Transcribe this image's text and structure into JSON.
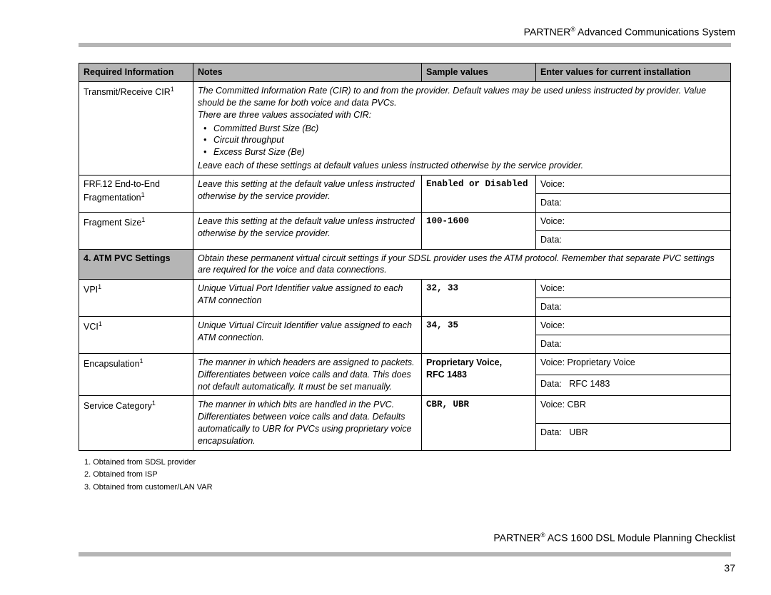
{
  "header": {
    "brand_prefix": "PARTNER",
    "brand_suffix": " Advanced Communications System"
  },
  "table": {
    "headers": {
      "c1": "Required Information",
      "c2": "Notes",
      "c3": "Sample values",
      "c4": "Enter values for current installation"
    },
    "rows": {
      "r1": {
        "name": "Transmit/Receive CIR",
        "notes_p1": "The Committed Information Rate (CIR) to and from the provider. Default values may be used unless instructed by provider. Value should be the same for both voice and data PVCs.",
        "notes_p2": "There are three values associated with CIR:",
        "b1": "Committed Burst Size (Bc)",
        "b2": "Circuit throughput",
        "b3": "Excess Burst Size (Be)",
        "notes_p3": "Leave each of these settings at default values unless instructed otherwise by the service provider."
      },
      "r2": {
        "name_l1": "FRF.12 End-to-End",
        "name_l2": "Fragmentation",
        "notes": "Leave this setting at the default value unless instructed otherwise by the service provider.",
        "sample": "Enabled or Disabled",
        "e1": "Voice:",
        "e2": "Data:"
      },
      "r3": {
        "name": "Fragment Size",
        "notes": "Leave this setting at the default value unless instructed otherwise by the service provider.",
        "sample": "100-1600",
        "e1": "Voice:",
        "e2": "Data:"
      },
      "section": {
        "label": "4. ATM PVC Settings",
        "desc": "Obtain these permanent virtual circuit settings if your SDSL provider uses the ATM protocol. Remember that separate PVC settings are required for the voice and data connections."
      },
      "r4": {
        "name": "VPI",
        "notes": "Unique Virtual Port Identifier value assigned to each ATM connection",
        "sample": "32, 33",
        "e1": "Voice:",
        "e2": "Data:"
      },
      "r5": {
        "name": "VCI",
        "notes": "Unique Virtual Circuit Identifier value assigned to each ATM connection.",
        "sample": "34, 35",
        "e1": "Voice:",
        "e2": "Data:"
      },
      "r6": {
        "name": "Encapsulation",
        "notes": "The manner in which headers are assigned to packets. Differentiates between voice calls and data. This does not default automatically. It must be set manually.",
        "sample_l1": "Proprietary Voice,",
        "sample_l2": "RFC 1483",
        "e1": "Voice: Proprietary Voice",
        "e2": "Data:   RFC 1483"
      },
      "r7": {
        "name": "Service Category",
        "notes": "The manner in which bits are handled in the PVC. Differentiates between voice calls and data. Defaults automatically to UBR for PVCs using proprietary voice encapsulation.",
        "sample": "CBR, UBR",
        "e1": "Voice: CBR",
        "e2": "Data:   UBR"
      }
    }
  },
  "footnotes": {
    "f1": "1. Obtained from SDSL provider",
    "f2": "2. Obtained from ISP",
    "f3": "3. Obtained from customer/LAN VAR"
  },
  "footer": {
    "brand_prefix": "PARTNER",
    "brand_suffix": " ACS 1600 DSL Module Planning Checklist",
    "page": "37"
  },
  "style": {
    "rule_color": "#b5b5b5",
    "header_bg": "#b5b5b5",
    "text_color": "#000000"
  }
}
